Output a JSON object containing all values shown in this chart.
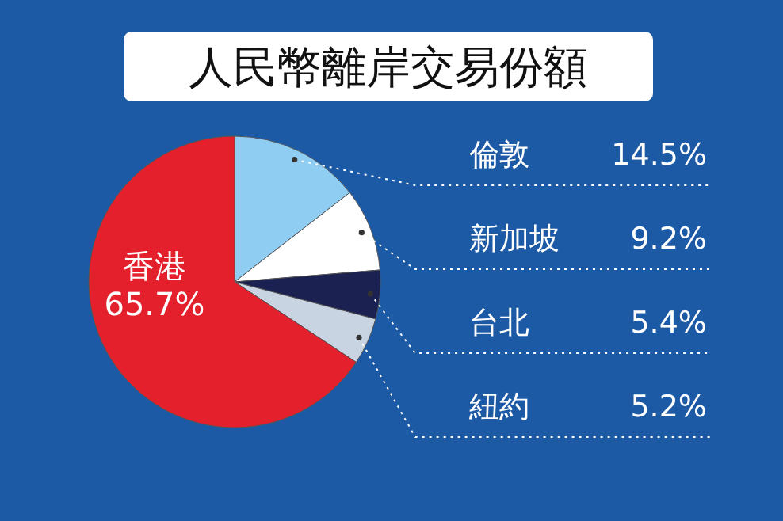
{
  "chart_data": {
    "type": "pie",
    "title": "人民幣離岸交易份額",
    "categories": [
      "倫敦",
      "新加坡",
      "台北",
      "紐約",
      "香港"
    ],
    "values": [
      14.5,
      9.2,
      5.4,
      5.2,
      65.7
    ],
    "colors": [
      "#8fcdf2",
      "#ffffff",
      "#1b2150",
      "#c9d4e2",
      "#e3202b"
    ],
    "value_labels": [
      "14.5%",
      "9.2%",
      "5.4%",
      "5.2%",
      "65.7%"
    ]
  }
}
